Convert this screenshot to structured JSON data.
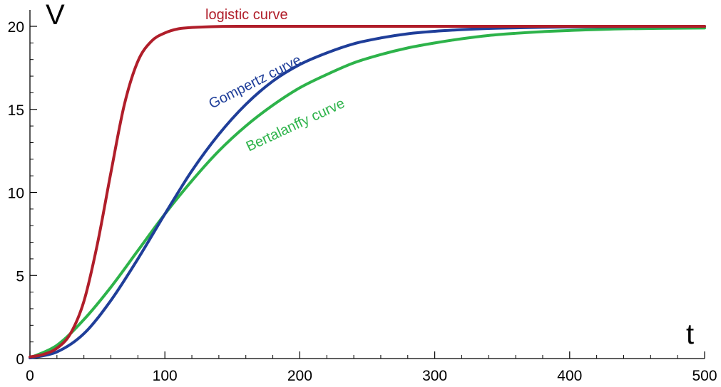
{
  "chart_data": {
    "type": "line",
    "xlabel": "t",
    "ylabel": "V",
    "xlim": [
      0,
      500
    ],
    "ylim": [
      0,
      20
    ],
    "x_ticks": [
      0,
      100,
      200,
      300,
      400,
      500
    ],
    "y_ticks": [
      0,
      5,
      10,
      15,
      20
    ],
    "x_minor_step": 20,
    "y_minor_step": 1,
    "grid": false,
    "legend": "none (curves labeled inline)",
    "series": [
      {
        "name": "logistic curve",
        "color": "#b01e2a",
        "x": [
          0,
          10,
          20,
          30,
          40,
          50,
          60,
          70,
          80,
          90,
          100,
          110,
          120,
          140,
          160,
          200,
          300,
          400,
          500
        ],
        "y": [
          0.1,
          0.25,
          0.62,
          1.5,
          3.45,
          6.9,
          11.2,
          15.3,
          17.9,
          19.1,
          19.6,
          19.85,
          19.93,
          19.99,
          20.0,
          20.0,
          20.0,
          20.0,
          20.0
        ]
      },
      {
        "name": "Gompertz curve",
        "color": "#1f3e99",
        "x": [
          0,
          20,
          40,
          60,
          80,
          100,
          120,
          140,
          160,
          180,
          200,
          220,
          240,
          260,
          280,
          300,
          320,
          340,
          360,
          380,
          400,
          440,
          500
        ],
        "y": [
          0.04,
          0.4,
          1.5,
          3.5,
          6.0,
          8.7,
          11.3,
          13.5,
          15.3,
          16.7,
          17.7,
          18.4,
          18.95,
          19.3,
          19.55,
          19.7,
          19.8,
          19.87,
          19.91,
          19.94,
          19.96,
          19.98,
          20.0
        ]
      },
      {
        "name": "Bertalanffy curve",
        "color": "#2db34a",
        "x": [
          0,
          20,
          40,
          60,
          80,
          100,
          120,
          140,
          160,
          180,
          200,
          220,
          240,
          260,
          280,
          300,
          320,
          340,
          360,
          380,
          400,
          440,
          500
        ],
        "y": [
          0.05,
          0.8,
          2.35,
          4.3,
          6.5,
          8.7,
          10.7,
          12.5,
          14.0,
          15.25,
          16.3,
          17.1,
          17.8,
          18.3,
          18.7,
          19.0,
          19.25,
          19.45,
          19.58,
          19.68,
          19.75,
          19.85,
          19.9
        ]
      }
    ]
  }
}
